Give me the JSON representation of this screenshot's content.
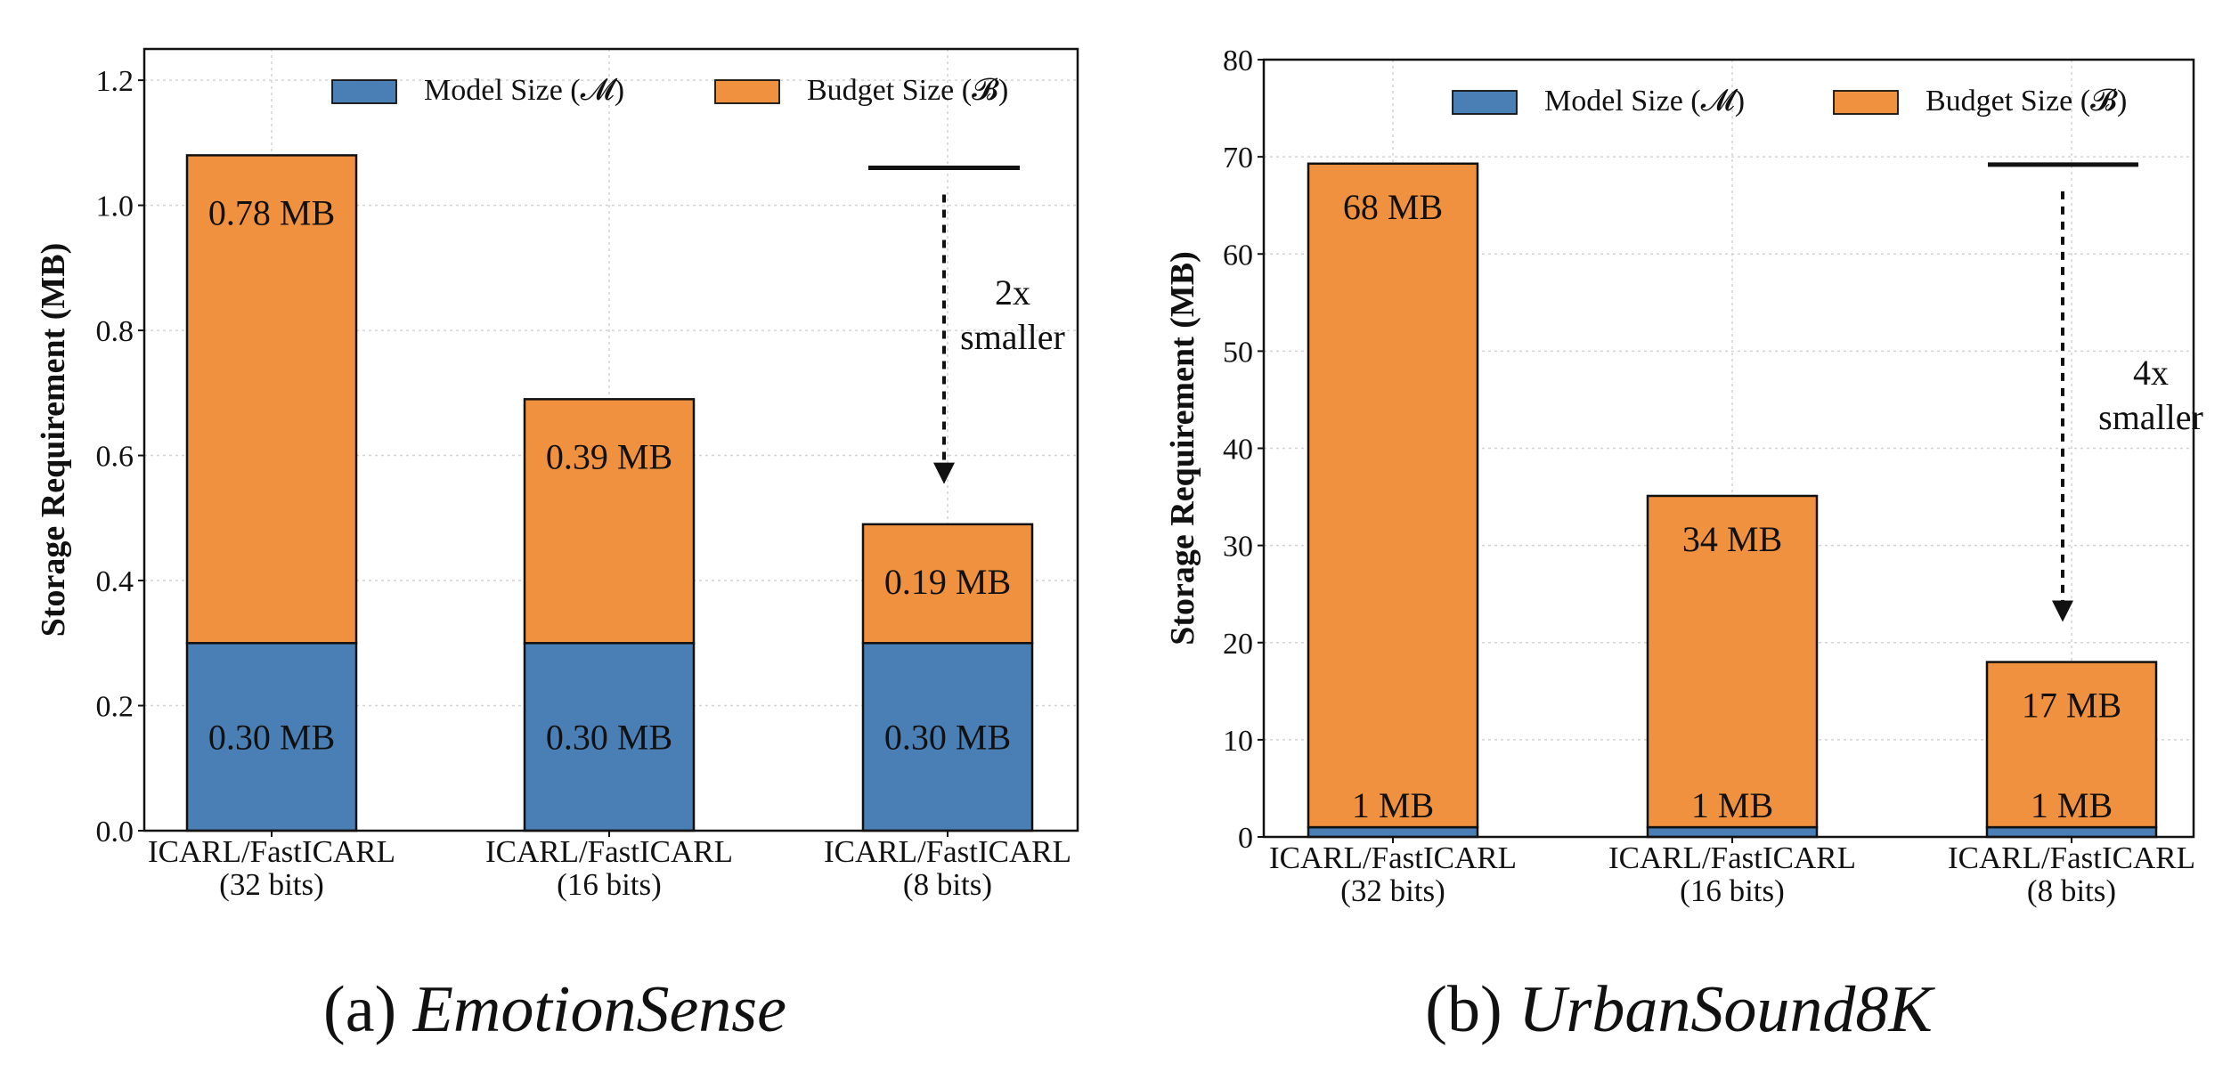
{
  "figure": {
    "captions": [
      {
        "prefix": "(a) ",
        "title": "EmotionSense"
      },
      {
        "prefix": "(b) ",
        "title": "UrbanSound8K"
      }
    ]
  },
  "colors": {
    "model": "#4a7fb6",
    "budget": "#f0913f"
  },
  "chart_data": [
    {
      "type": "bar",
      "stacked": true,
      "title": "",
      "xlabel": "",
      "ylabel": "Storage Requirement (MB)",
      "ylim": [
        0,
        1.25
      ],
      "yticks": [
        0.0,
        0.2,
        0.4,
        0.6,
        0.8,
        1.0,
        1.2
      ],
      "ytick_labels": [
        "0.0",
        "0.2",
        "0.4",
        "0.6",
        "0.8",
        "1.0",
        "1.2"
      ],
      "grid": true,
      "legend": {
        "placement": "top-right",
        "entries": [
          "Model Size (𝓜)",
          "Budget Size (𝓑)"
        ]
      },
      "categories": [
        [
          "ICARL/FastICARL",
          "(32 bits)"
        ],
        [
          "ICARL/FastICARL",
          "(16 bits)"
        ],
        [
          "ICARL/FastICARL",
          "(8 bits)"
        ]
      ],
      "series": [
        {
          "name": "Model Size (𝓜)",
          "values": [
            0.3,
            0.3,
            0.3
          ],
          "labels": [
            "0.30 MB",
            "0.30 MB",
            "0.30 MB"
          ]
        },
        {
          "name": "Budget Size (𝓑)",
          "values": [
            0.78,
            0.39,
            0.19
          ],
          "labels": [
            "0.78 MB",
            "0.39 MB",
            "0.19 MB"
          ]
        }
      ],
      "annotation": {
        "lines": [
          "2x",
          "smaller"
        ],
        "from": 1.06,
        "to": 0.56
      }
    },
    {
      "type": "bar",
      "stacked": true,
      "title": "",
      "xlabel": "",
      "ylabel": "Storage Requirement (MB)",
      "ylim": [
        0,
        80
      ],
      "yticks": [
        0,
        10,
        20,
        30,
        40,
        50,
        60,
        70,
        80
      ],
      "ytick_labels": [
        "0",
        "10",
        "20",
        "30",
        "40",
        "50",
        "60",
        "70",
        "80"
      ],
      "grid": true,
      "legend": {
        "placement": "top-right",
        "entries": [
          "Model Size (𝓜)",
          "Budget Size (𝓑)"
        ]
      },
      "categories": [
        [
          "ICARL/FastICARL",
          "(32 bits)"
        ],
        [
          "ICARL/FastICARL",
          "(16 bits)"
        ],
        [
          "ICARL/FastICARL",
          "(8 bits)"
        ]
      ],
      "series": [
        {
          "name": "Model Size (𝓜)",
          "values": [
            1,
            1,
            1
          ],
          "labels": [
            "1 MB",
            "1 MB",
            "1 MB"
          ]
        },
        {
          "name": "Budget Size (𝓑)",
          "values": [
            68.3,
            34.1,
            17.0
          ],
          "labels": [
            "68 MB",
            "34 MB",
            "17 MB"
          ]
        }
      ],
      "annotation": {
        "lines": [
          "4x",
          "smaller"
        ],
        "from": 69.2,
        "to": 22.5
      }
    }
  ]
}
